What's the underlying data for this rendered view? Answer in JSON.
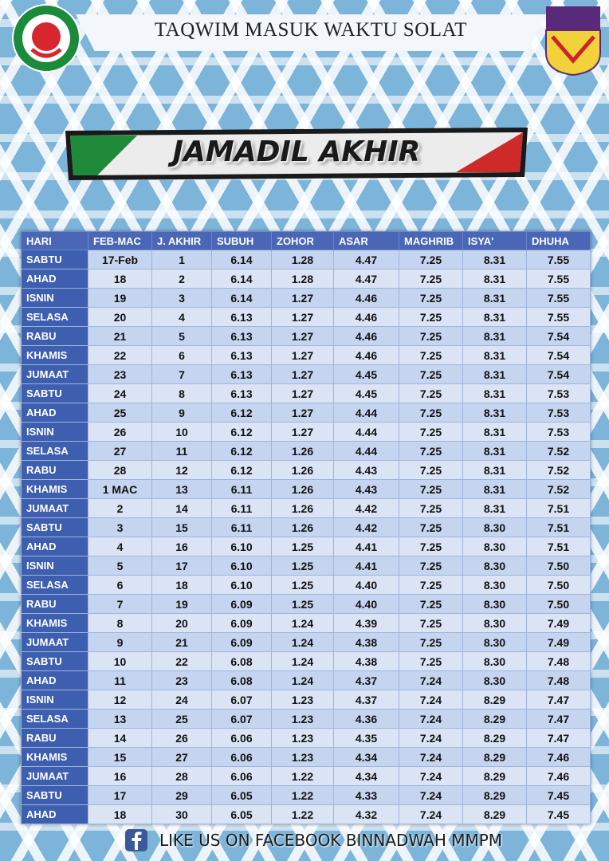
{
  "header": {
    "title": "TAQWIM MASUK WAKTU SOLAT"
  },
  "banner": {
    "title": "JAMADIL AKHIR"
  },
  "table": {
    "headers": [
      "HARI",
      "FEB-MAC",
      "J. AKHIR",
      "SUBUH",
      "ZOHOR",
      "ASAR",
      "MAGHRIB",
      "ISYA'",
      "DHUHA"
    ],
    "rows": [
      [
        "SABTU",
        "17-Feb",
        "1",
        "6.14",
        "1.28",
        "4.47",
        "7.25",
        "8.31",
        "7.55"
      ],
      [
        "AHAD",
        "18",
        "2",
        "6.14",
        "1.28",
        "4.47",
        "7.25",
        "8.31",
        "7.55"
      ],
      [
        "ISNIN",
        "19",
        "3",
        "6.14",
        "1.27",
        "4.46",
        "7.25",
        "8.31",
        "7.55"
      ],
      [
        "SELASA",
        "20",
        "4",
        "6.13",
        "1.27",
        "4.46",
        "7.25",
        "8.31",
        "7.55"
      ],
      [
        "RABU",
        "21",
        "5",
        "6.13",
        "1.27",
        "4.46",
        "7.25",
        "8.31",
        "7.54"
      ],
      [
        "KHAMIS",
        "22",
        "6",
        "6.13",
        "1.27",
        "4.46",
        "7.25",
        "8.31",
        "7.54"
      ],
      [
        "JUMAAT",
        "23",
        "7",
        "6.13",
        "1.27",
        "4.45",
        "7.25",
        "8.31",
        "7.54"
      ],
      [
        "SABTU",
        "24",
        "8",
        "6.13",
        "1.27",
        "4.45",
        "7.25",
        "8.31",
        "7.53"
      ],
      [
        "AHAD",
        "25",
        "9",
        "6.12",
        "1.27",
        "4.44",
        "7.25",
        "8.31",
        "7.53"
      ],
      [
        "ISNIN",
        "26",
        "10",
        "6.12",
        "1.27",
        "4.44",
        "7.25",
        "8.31",
        "7.53"
      ],
      [
        "SELASA",
        "27",
        "11",
        "6.12",
        "1.26",
        "4.44",
        "7.25",
        "8.31",
        "7.52"
      ],
      [
        "RABU",
        "28",
        "12",
        "6.12",
        "1.26",
        "4.43",
        "7.25",
        "8.31",
        "7.52"
      ],
      [
        "KHAMIS",
        "1 MAC",
        "13",
        "6.11",
        "1.26",
        "4.43",
        "7.25",
        "8.31",
        "7.52"
      ],
      [
        "JUMAAT",
        "2",
        "14",
        "6.11",
        "1.26",
        "4.42",
        "7.25",
        "8.31",
        "7.51"
      ],
      [
        "SABTU",
        "3",
        "15",
        "6.11",
        "1.26",
        "4.42",
        "7.25",
        "8.30",
        "7.51"
      ],
      [
        "AHAD",
        "4",
        "16",
        "6.10",
        "1.25",
        "4.41",
        "7.25",
        "8.30",
        "7.51"
      ],
      [
        "ISNIN",
        "5",
        "17",
        "6.10",
        "1.25",
        "4.41",
        "7.25",
        "8.30",
        "7.50"
      ],
      [
        "SELASA",
        "6",
        "18",
        "6.10",
        "1.25",
        "4.40",
        "7.25",
        "8.30",
        "7.50"
      ],
      [
        "RABU",
        "7",
        "19",
        "6.09",
        "1.25",
        "4.40",
        "7.25",
        "8.30",
        "7.50"
      ],
      [
        "KHAMIS",
        "8",
        "20",
        "6.09",
        "1.24",
        "4.39",
        "7.25",
        "8.30",
        "7.49"
      ],
      [
        "JUMAAT",
        "9",
        "21",
        "6.09",
        "1.24",
        "4.38",
        "7.25",
        "8.30",
        "7.49"
      ],
      [
        "SABTU",
        "10",
        "22",
        "6.08",
        "1.24",
        "4.38",
        "7.25",
        "8.30",
        "7.48"
      ],
      [
        "AHAD",
        "11",
        "23",
        "6.08",
        "1.24",
        "4.37",
        "7.24",
        "8.30",
        "7.48"
      ],
      [
        "ISNIN",
        "12",
        "24",
        "6.07",
        "1.23",
        "4.37",
        "7.24",
        "8.29",
        "7.47"
      ],
      [
        "SELASA",
        "13",
        "25",
        "6.07",
        "1.23",
        "4.36",
        "7.24",
        "8.29",
        "7.47"
      ],
      [
        "RABU",
        "14",
        "26",
        "6.06",
        "1.23",
        "4.35",
        "7.24",
        "8.29",
        "7.47"
      ],
      [
        "KHAMIS",
        "15",
        "27",
        "6.06",
        "1.23",
        "4.34",
        "7.24",
        "8.29",
        "7.46"
      ],
      [
        "JUMAAT",
        "16",
        "28",
        "6.06",
        "1.22",
        "4.34",
        "7.24",
        "8.29",
        "7.46"
      ],
      [
        "SABTU",
        "17",
        "29",
        "6.05",
        "1.22",
        "4.33",
        "7.24",
        "8.29",
        "7.45"
      ],
      [
        "AHAD",
        "18",
        "30",
        "6.05",
        "1.22",
        "4.32",
        "7.24",
        "8.29",
        "7.45"
      ]
    ]
  },
  "footer": {
    "text": "LIKE US ON FACEBOOK BINNADWAH MMPM"
  }
}
